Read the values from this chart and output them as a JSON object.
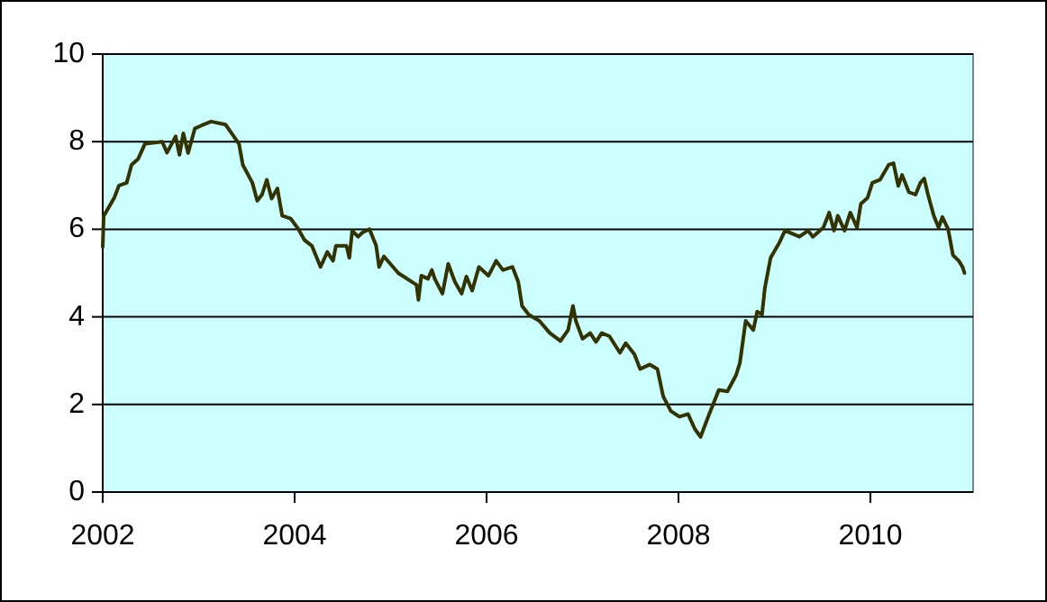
{
  "chart_data": {
    "type": "line",
    "xlim": [
      2002,
      2011.07
    ],
    "xticks": [
      2002,
      2004,
      2006,
      2008,
      2010
    ],
    "ylim": [
      0,
      10
    ],
    "yticks": [
      0,
      2,
      4,
      6,
      8,
      10
    ],
    "grid": "y",
    "marker": "none",
    "line_style": "solid",
    "series": [
      {
        "color": "#333300",
        "x": [
          2002.0,
          2002.01,
          2002.05,
          2002.12,
          2002.17,
          2002.25,
          2002.3,
          2002.37,
          2002.44,
          2002.62,
          2002.67,
          2002.76,
          2002.8,
          2002.84,
          2002.89,
          2002.96,
          2003.03,
          2003.13,
          2003.28,
          2003.34,
          2003.42,
          2003.46,
          2003.56,
          2003.61,
          2003.66,
          2003.71,
          2003.76,
          2003.82,
          2003.87,
          2003.96,
          2004.04,
          2004.1,
          2004.18,
          2004.27,
          2004.34,
          2004.4,
          2004.43,
          2004.54,
          2004.57,
          2004.6,
          2004.66,
          2004.71,
          2004.78,
          2004.85,
          2004.88,
          2004.93,
          2005.08,
          2005.27,
          2005.29,
          2005.32,
          2005.39,
          2005.43,
          2005.46,
          2005.54,
          2005.6,
          2005.67,
          2005.74,
          2005.79,
          2005.85,
          2005.92,
          2006.02,
          2006.1,
          2006.17,
          2006.27,
          2006.33,
          2006.37,
          2006.44,
          2006.55,
          2006.66,
          2006.77,
          2006.85,
          2006.9,
          2006.93,
          2007.0,
          2007.08,
          2007.14,
          2007.2,
          2007.28,
          2007.39,
          2007.45,
          2007.54,
          2007.6,
          2007.7,
          2007.78,
          2007.84,
          2007.92,
          2008.01,
          2008.1,
          2008.17,
          2008.23,
          2008.32,
          2008.42,
          2008.51,
          2008.6,
          2008.64,
          2008.7,
          2008.78,
          2008.82,
          2008.87,
          2008.9,
          2008.96,
          2009.05,
          2009.11,
          2009.26,
          2009.35,
          2009.4,
          2009.51,
          2009.57,
          2009.62,
          2009.66,
          2009.73,
          2009.79,
          2009.86,
          2009.9,
          2009.97,
          2010.02,
          2010.1,
          2010.19,
          2010.24,
          2010.29,
          2010.33,
          2010.4,
          2010.47,
          2010.52,
          2010.56,
          2010.6,
          2010.66,
          2010.71,
          2010.75,
          2010.81,
          2010.86,
          2010.92,
          2010.96,
          2010.98
        ],
        "values": [
          5.6,
          6.3,
          6.45,
          6.72,
          7.0,
          7.06,
          7.47,
          7.61,
          7.95,
          8.0,
          7.75,
          8.12,
          7.7,
          8.19,
          7.74,
          8.3,
          8.37,
          8.46,
          8.39,
          8.2,
          7.95,
          7.47,
          7.06,
          6.65,
          6.79,
          7.13,
          6.7,
          6.93,
          6.31,
          6.24,
          6.0,
          5.76,
          5.62,
          5.14,
          5.48,
          5.28,
          5.62,
          5.62,
          5.35,
          5.97,
          5.83,
          5.93,
          6.0,
          5.62,
          5.14,
          5.38,
          5.0,
          4.73,
          4.39,
          4.94,
          4.87,
          5.07,
          4.87,
          4.53,
          5.21,
          4.8,
          4.53,
          4.92,
          4.6,
          5.14,
          4.94,
          5.28,
          5.07,
          5.14,
          4.8,
          4.25,
          4.05,
          3.91,
          3.63,
          3.45,
          3.7,
          4.25,
          3.91,
          3.5,
          3.63,
          3.43,
          3.63,
          3.56,
          3.18,
          3.4,
          3.15,
          2.81,
          2.91,
          2.81,
          2.19,
          1.85,
          1.72,
          1.78,
          1.44,
          1.26,
          1.78,
          2.33,
          2.3,
          2.67,
          2.95,
          3.91,
          3.7,
          4.12,
          4.05,
          4.66,
          5.35,
          5.69,
          5.97,
          5.83,
          5.97,
          5.83,
          6.04,
          6.38,
          5.97,
          6.31,
          5.97,
          6.38,
          6.04,
          6.58,
          6.72,
          7.06,
          7.13,
          7.47,
          7.51,
          6.99,
          7.24,
          6.85,
          6.79,
          7.06,
          7.16,
          6.79,
          6.31,
          6.04,
          6.28,
          6.0,
          5.41,
          5.28,
          5.14,
          5.0
        ]
      }
    ]
  }
}
